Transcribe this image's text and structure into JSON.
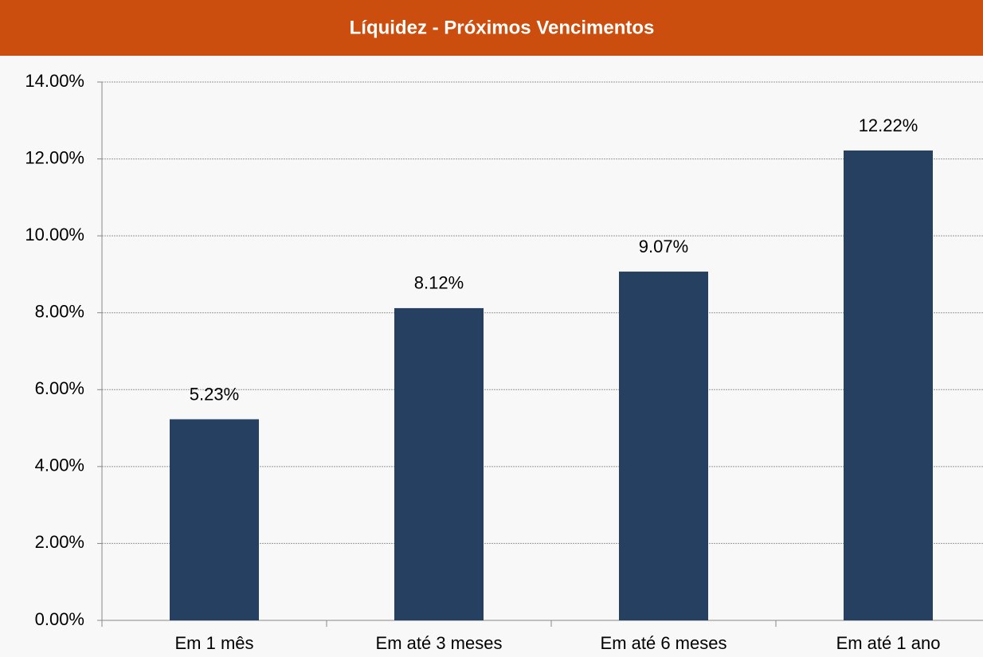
{
  "chart_data": {
    "type": "bar",
    "title": "Líquidez - Próximos Vencimentos",
    "categories": [
      "Em 1 mês",
      "Em até 3 meses",
      "Em até 6 meses",
      "Em até 1 ano"
    ],
    "values": [
      5.23,
      8.12,
      9.07,
      12.22
    ],
    "value_labels": [
      "5.23%",
      "8.12%",
      "9.07%",
      "12.22%"
    ],
    "color": "#264061",
    "ylim": [
      0,
      14
    ],
    "yticks": [
      {
        "value": 0,
        "label": "0.00%"
      },
      {
        "value": 2,
        "label": "2.00%"
      },
      {
        "value": 4,
        "label": "4.00%"
      },
      {
        "value": 6,
        "label": "6.00%"
      },
      {
        "value": 8,
        "label": "8.00%"
      },
      {
        "value": 10,
        "label": "10.00%"
      },
      {
        "value": 12,
        "label": "12.00%"
      },
      {
        "value": 14,
        "label": "14.00%"
      }
    ],
    "grid": true
  }
}
